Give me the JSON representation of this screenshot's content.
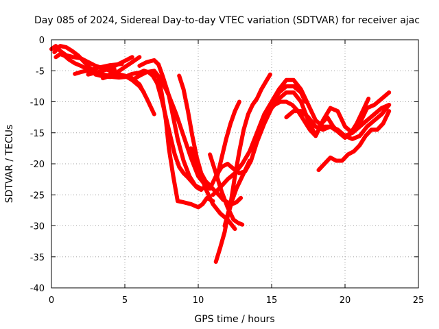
{
  "chart_data": {
    "type": "scatter",
    "title": "Day 085 of 2024, Sidereal Day-to-day VTEC variation (SDTVAR) for receiver ajac",
    "xlabel": "GPS time / hours",
    "ylabel": "SDTVAR / TECUs",
    "xlim": [
      0,
      25
    ],
    "ylim": [
      -40,
      0
    ],
    "xticks": [
      0,
      5,
      10,
      15,
      20,
      25
    ],
    "yticks": [
      0,
      -5,
      -10,
      -15,
      -20,
      -25,
      -30,
      -35,
      -40
    ],
    "grid": true,
    "series_color": "#ff0000",
    "series": [
      {
        "x": [
          0.0,
          0.3,
          0.6,
          1.0,
          1.5,
          2.0,
          2.5,
          3.0,
          3.5,
          4.0,
          4.3
        ],
        "y": [
          -1.5,
          -1.0,
          -1.8,
          -2.5,
          -2.8,
          -3.0,
          -3.6,
          -4.2,
          -4.6,
          -5.0,
          -4.8
        ]
      },
      {
        "x": [
          0.2,
          0.6,
          1.0,
          1.4,
          1.8,
          2.2,
          2.6,
          3.0,
          3.4,
          3.8,
          4.2,
          4.6,
          5.0
        ],
        "y": [
          -2.0,
          -1.0,
          -1.2,
          -1.8,
          -2.5,
          -3.5,
          -4.5,
          -5.3,
          -5.6,
          -5.8,
          -6.0,
          -6.1,
          -6.0
        ]
      },
      {
        "x": [
          0.3,
          0.6,
          0.9,
          1.2,
          1.6,
          2.0,
          2.5,
          3.0,
          3.5,
          4.0
        ],
        "y": [
          -2.8,
          -2.3,
          -2.6,
          -3.2,
          -3.8,
          -4.2,
          -4.8,
          -5.2,
          -5.6,
          -5.8
        ]
      },
      {
        "x": [
          1.6,
          2.0,
          2.4,
          2.8,
          3.2,
          3.6,
          4.0,
          4.4,
          4.8
        ],
        "y": [
          -5.5,
          -5.2,
          -5.0,
          -4.8,
          -4.5,
          -4.3,
          -4.1,
          -4.0,
          -3.9
        ]
      },
      {
        "x": [
          2.5,
          3.0,
          3.5,
          4.0,
          4.5,
          5.0,
          5.5
        ],
        "y": [
          -5.6,
          -5.3,
          -5.0,
          -4.6,
          -4.0,
          -3.4,
          -2.8
        ]
      },
      {
        "x": [
          3.5,
          4.0,
          4.5,
          5.0,
          5.5,
          6.0
        ],
        "y": [
          -6.2,
          -5.8,
          -5.2,
          -4.4,
          -3.6,
          -2.8
        ]
      },
      {
        "x": [
          3.0,
          3.5,
          4.0,
          4.5,
          5.0,
          5.5,
          6.0,
          6.5,
          7.0
        ],
        "y": [
          -5.6,
          -5.9,
          -6.0,
          -5.9,
          -5.8,
          -6.2,
          -7.2,
          -9.5,
          -12.0
        ]
      },
      {
        "x": [
          4.0,
          4.5,
          5.0,
          5.5,
          6.0,
          6.3
        ],
        "y": [
          -5.5,
          -5.5,
          -5.8,
          -6.5,
          -7.5,
          -8.5
        ]
      },
      {
        "x": [
          5.0,
          5.5,
          6.0,
          6.3,
          6.6,
          6.9,
          7.2,
          7.5,
          7.8,
          8.1,
          8.4,
          8.7,
          9.0,
          9.3,
          9.6,
          9.9,
          10.2
        ],
        "y": [
          -6.0,
          -5.5,
          -5.3,
          -5.0,
          -5.2,
          -5.8,
          -7.0,
          -9.5,
          -12.5,
          -15.5,
          -18.5,
          -20.5,
          -21.5,
          -22.2,
          -23.0,
          -23.8,
          -24.2
        ]
      },
      {
        "x": [
          5.5,
          6.0,
          6.5,
          7.0,
          7.5,
          8.0,
          8.5,
          9.0,
          9.5,
          10.0,
          10.5
        ],
        "y": [
          -6.5,
          -5.8,
          -5.2,
          -5.0,
          -6.5,
          -9.0,
          -12.0,
          -15.5,
          -19.0,
          -22.0,
          -23.5
        ]
      },
      {
        "x": [
          6.0,
          6.5,
          7.0,
          7.3,
          7.6,
          8.0,
          8.3,
          8.6,
          9.0,
          9.4,
          9.8,
          10.2,
          10.6
        ],
        "y": [
          -4.2,
          -3.6,
          -3.3,
          -4.0,
          -6.0,
          -9.0,
          -12.5,
          -16.0,
          -19.5,
          -22.0,
          -23.5,
          -24.0,
          -23.8
        ]
      },
      {
        "x": [
          7.0,
          7.3,
          7.5,
          7.8,
          8.0,
          8.3,
          8.6,
          9.0,
          9.5,
          10.0,
          10.3,
          10.6,
          11.0
        ],
        "y": [
          -5.5,
          -6.0,
          -8.5,
          -13.0,
          -17.5,
          -22.0,
          -26.0,
          -26.2,
          -26.5,
          -27.0,
          -26.5,
          -25.5,
          -26.0
        ]
      },
      {
        "x": [
          8.7,
          9.0,
          9.3,
          9.6,
          9.9,
          10.2,
          10.5,
          10.8,
          11.1,
          11.4,
          11.7,
          12.0,
          12.3,
          12.6,
          12.9
        ],
        "y": [
          -5.8,
          -8.0,
          -11.5,
          -15.5,
          -19.0,
          -21.5,
          -22.8,
          -23.5,
          -24.3,
          -25.0,
          -25.8,
          -26.2,
          -26.5,
          -26.2,
          -25.5
        ]
      },
      {
        "x": [
          9.5,
          10.0,
          10.5,
          11.0,
          11.5,
          12.0,
          12.5
        ],
        "y": [
          -17.5,
          -20.5,
          -24.0,
          -26.5,
          -28.0,
          -29.0,
          -30.5
        ]
      },
      {
        "x": [
          10.8,
          11.2,
          11.6,
          12.0,
          12.4,
          12.7,
          13.0
        ],
        "y": [
          -18.5,
          -21.5,
          -24.5,
          -27.0,
          -29.0,
          -29.5,
          -29.8
        ]
      },
      {
        "x": [
          11.2,
          11.5,
          11.8,
          12.0,
          12.3,
          12.6,
          12.9,
          13.2,
          13.5
        ],
        "y": [
          -35.8,
          -33.5,
          -31.0,
          -28.5,
          -26.0,
          -24.0,
          -22.5,
          -21.0,
          -19.5
        ]
      },
      {
        "x": [
          10.8,
          11.2,
          11.6,
          12.0,
          12.4,
          12.8,
          13.2,
          13.6,
          14.0,
          14.4,
          14.8,
          15.2
        ],
        "y": [
          -24.0,
          -22.0,
          -20.5,
          -20.0,
          -20.8,
          -21.5,
          -21.2,
          -19.5,
          -16.5,
          -13.5,
          -11.0,
          -9.5
        ]
      },
      {
        "x": [
          11.0,
          11.5,
          12.0,
          12.5,
          13.0,
          13.5,
          14.0,
          14.5,
          15.0,
          15.5,
          16.0,
          16.5,
          17.0,
          17.3
        ],
        "y": [
          -25.0,
          -23.8,
          -22.5,
          -21.5,
          -20.0,
          -18.0,
          -15.5,
          -13.0,
          -10.5,
          -8.5,
          -7.5,
          -7.5,
          -8.5,
          -10.0
        ]
      },
      {
        "x": [
          11.8,
          12.2,
          12.5,
          12.8,
          13.1,
          13.4,
          13.7,
          14.0,
          14.3,
          14.6,
          14.9
        ],
        "y": [
          -30.0,
          -26.5,
          -22.0,
          -18.0,
          -14.5,
          -12.0,
          -10.5,
          -9.5,
          -8.0,
          -6.8,
          -5.6
        ]
      },
      {
        "x": [
          11.3,
          11.6,
          11.9,
          12.2,
          12.5,
          12.8
        ],
        "y": [
          -22.0,
          -19.0,
          -16.0,
          -13.5,
          -11.5,
          -10.0
        ]
      },
      {
        "x": [
          13.5,
          14.0,
          14.5,
          15.0,
          15.5,
          16.0,
          16.5,
          17.0,
          17.5,
          18.0,
          18.5,
          19.0,
          19.5,
          20.0,
          20.5,
          21.0,
          21.5,
          22.0,
          22.5,
          23.0
        ],
        "y": [
          -18.0,
          -15.0,
          -12.0,
          -10.0,
          -8.0,
          -6.5,
          -6.5,
          -8.0,
          -10.5,
          -13.0,
          -14.0,
          -14.0,
          -14.8,
          -15.5,
          -15.0,
          -14.0,
          -13.0,
          -12.0,
          -11.0,
          -10.5
        ]
      },
      {
        "x": [
          14.0,
          14.5,
          15.0,
          15.5,
          16.0,
          16.5,
          17.0,
          17.5,
          18.0,
          18.5,
          19.0,
          19.5,
          20.0,
          20.5,
          21.0,
          21.5,
          22.0,
          22.5,
          23.0
        ],
        "y": [
          -16.5,
          -13.5,
          -11.0,
          -9.5,
          -8.5,
          -8.5,
          -10.0,
          -13.0,
          -15.5,
          -13.0,
          -11.0,
          -11.5,
          -14.0,
          -15.0,
          -13.5,
          -11.0,
          -10.5,
          -9.5,
          -8.5
        ]
      },
      {
        "x": [
          14.8,
          15.2,
          15.6,
          16.0,
          16.4,
          16.8,
          17.2,
          17.6,
          18.0,
          18.4,
          18.8,
          19.2,
          19.6,
          20.0,
          20.4,
          20.8,
          21.2,
          21.6
        ],
        "y": [
          -11.5,
          -10.5,
          -10.0,
          -10.0,
          -10.5,
          -11.5,
          -13.0,
          -14.5,
          -15.5,
          -13.5,
          -12.5,
          -14.0,
          -15.0,
          -15.8,
          -15.0,
          -13.5,
          -11.5,
          -9.5
        ]
      },
      {
        "x": [
          16.0,
          16.5,
          17.0,
          17.5,
          18.0,
          18.5,
          19.0,
          19.5,
          20.0,
          20.5,
          21.0,
          21.5,
          22.0,
          22.5,
          23.0
        ],
        "y": [
          -12.5,
          -11.5,
          -11.5,
          -12.5,
          -14.0,
          -14.5,
          -14.0,
          -14.5,
          -15.5,
          -16.0,
          -15.5,
          -14.0,
          -13.0,
          -12.0,
          -10.5
        ]
      },
      {
        "x": [
          18.2,
          18.6,
          19.0,
          19.4,
          19.8,
          20.2,
          20.6,
          21.0,
          21.4,
          21.8,
          22.2,
          22.6,
          23.0
        ],
        "y": [
          -21.0,
          -20.0,
          -19.0,
          -19.5,
          -19.5,
          -18.5,
          -18.0,
          -17.0,
          -15.5,
          -14.5,
          -14.5,
          -13.5,
          -11.5
        ]
      }
    ]
  }
}
